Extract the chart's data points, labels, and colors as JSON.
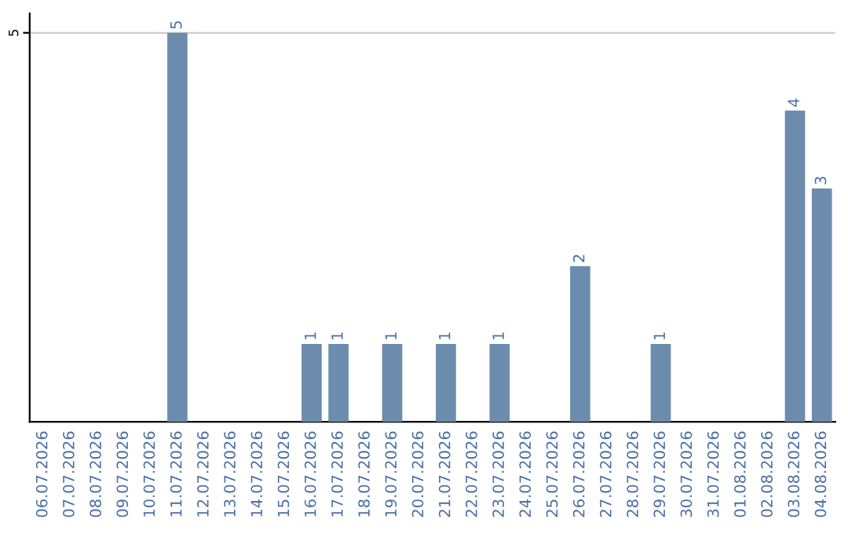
{
  "chart_data": {
    "type": "bar",
    "categories": [
      "06.07.2026",
      "07.07.2026",
      "08.07.2026",
      "09.07.2026",
      "10.07.2026",
      "11.07.2026",
      "12.07.2026",
      "13.07.2026",
      "14.07.2026",
      "15.07.2026",
      "16.07.2026",
      "17.07.2026",
      "18.07.2026",
      "19.07.2026",
      "20.07.2026",
      "21.07.2026",
      "22.07.2026",
      "23.07.2026",
      "24.07.2026",
      "25.07.2026",
      "26.07.2026",
      "27.07.2026",
      "28.07.2026",
      "29.07.2026",
      "30.07.2026",
      "31.07.2026",
      "01.08.2026",
      "02.08.2026",
      "03.08.2026",
      "04.08.2026"
    ],
    "values": [
      0,
      0,
      0,
      0,
      0,
      5,
      0,
      0,
      0,
      0,
      1,
      1,
      0,
      1,
      0,
      1,
      0,
      1,
      0,
      0,
      2,
      0,
      0,
      1,
      0,
      0,
      0,
      0,
      4,
      3
    ],
    "value_labels": [
      null,
      null,
      null,
      null,
      null,
      "5",
      null,
      null,
      null,
      null,
      "1",
      "1",
      null,
      "1",
      null,
      "1",
      null,
      "1",
      null,
      null,
      "2",
      null,
      null,
      "1",
      null,
      null,
      null,
      null,
      "4",
      "3"
    ],
    "color": "#6b8cad",
    "ylim": [
      0,
      5.25
    ],
    "yticks": [
      5
    ],
    "grid": "y"
  }
}
